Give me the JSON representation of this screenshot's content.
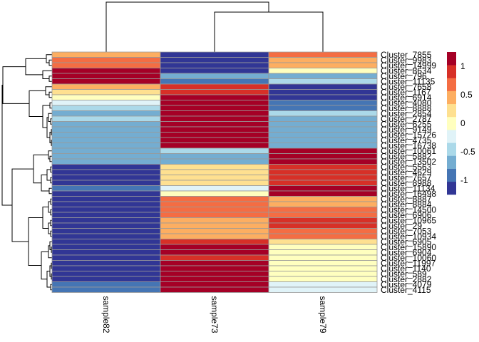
{
  "chart_data": {
    "type": "heatmap",
    "title": "",
    "xlabel": "",
    "ylabel": "",
    "columns": [
      "sample82",
      "sample73",
      "sample79"
    ],
    "rows": [
      "Cluster_7855",
      "Cluster_9983",
      "Cluster_14999",
      "Cluster_8634",
      "Cluster_796",
      "Cluster_11135",
      "Cluster_7658",
      "Cluster_1167",
      "Cluster_6914",
      "Cluster_4080",
      "Cluster_8888",
      "Cluster_2854",
      "Cluster_2787",
      "Cluster_6255",
      "Cluster_9149",
      "Cluster_15726",
      "Cluster_4735",
      "Cluster_16738",
      "Cluster_10061",
      "Cluster_5882",
      "Cluster_13502",
      "Cluster_5563",
      "Cluster_4629",
      "Cluster_7657",
      "Cluster_8988",
      "Cluster_11134",
      "Cluster_16498",
      "Cluster_8887",
      "Cluster_8884",
      "Cluster_14500",
      "Cluster_6906",
      "Cluster_10965",
      "Cluster_29",
      "Cluster_7053",
      "Cluster_10934",
      "Cluster_6905",
      "Cluster_15890",
      "Cluster_6904",
      "Cluster_10060",
      "Cluster_11997",
      "Cluster_1140",
      "Cluster_589",
      "Cluster_2882",
      "Cluster_4079",
      "Cluster_4115"
    ],
    "values": [
      [
        0.5,
        -1.15,
        0.75
      ],
      [
        0.75,
        -1.15,
        0.5
      ],
      [
        0.75,
        -1.15,
        0.5
      ],
      [
        1.15,
        -1.15,
        0.0
      ],
      [
        1.15,
        -0.6,
        -0.6
      ],
      [
        1.15,
        -0.85,
        -0.4
      ],
      [
        0.5,
        0.95,
        -1.15
      ],
      [
        0.3,
        0.95,
        -1.15
      ],
      [
        0.0,
        1.15,
        -1.15
      ],
      [
        -0.15,
        1.15,
        -0.85
      ],
      [
        -0.4,
        1.15,
        -0.85
      ],
      [
        -0.6,
        1.15,
        -0.4
      ],
      [
        -0.4,
        1.15,
        -0.6
      ],
      [
        -0.6,
        1.15,
        -0.6
      ],
      [
        -0.6,
        1.15,
        -0.6
      ],
      [
        -0.6,
        1.15,
        -0.6
      ],
      [
        -0.6,
        1.15,
        -0.6
      ],
      [
        -0.6,
        1.15,
        -0.6
      ],
      [
        -0.6,
        -0.4,
        1.15
      ],
      [
        -0.6,
        -0.6,
        1.15
      ],
      [
        -0.6,
        -0.6,
        1.15
      ],
      [
        -1.15,
        0.3,
        0.95
      ],
      [
        -1.15,
        0.3,
        0.95
      ],
      [
        -1.15,
        0.3,
        0.95
      ],
      [
        -1.15,
        0.3,
        0.95
      ],
      [
        -0.85,
        -0.15,
        1.15
      ],
      [
        -1.15,
        0.0,
        1.15
      ],
      [
        -1.15,
        0.75,
        0.5
      ],
      [
        -1.15,
        0.75,
        0.5
      ],
      [
        -1.15,
        0.75,
        0.75
      ],
      [
        -1.15,
        0.75,
        0.75
      ],
      [
        -1.15,
        0.5,
        0.95
      ],
      [
        -1.15,
        0.5,
        0.95
      ],
      [
        -1.15,
        0.5,
        0.75
      ],
      [
        -1.15,
        0.5,
        0.75
      ],
      [
        -1.15,
        0.95,
        0.3
      ],
      [
        -1.15,
        1.15,
        0.0
      ],
      [
        -1.15,
        1.15,
        0.0
      ],
      [
        -1.15,
        0.95,
        0.0
      ],
      [
        -1.15,
        1.15,
        0.0
      ],
      [
        -1.15,
        1.15,
        0.0
      ],
      [
        -1.15,
        1.15,
        0.0
      ],
      [
        -1.15,
        1.15,
        0.0
      ],
      [
        -0.85,
        1.15,
        -0.15
      ],
      [
        -0.85,
        1.15,
        -0.15
      ]
    ],
    "color_scale": {
      "min": -1.25,
      "max": 1.25,
      "colors": [
        "#313695",
        "#4575B4",
        "#74ADD1",
        "#ABD9E9",
        "#E0F3F8",
        "#FFFFBF",
        "#FEE090",
        "#FDAE61",
        "#F46D43",
        "#D73027",
        "#A50026"
      ]
    },
    "legend": {
      "position": "right",
      "ticks": [
        1,
        0.5,
        0,
        -0.5,
        -1
      ],
      "tick_labels": [
        "1",
        "0.5",
        "0",
        "-0.5",
        "-1"
      ]
    },
    "col_dendrogram_order": [
      "sample82",
      "sample73",
      "sample79"
    ],
    "grid": true,
    "cell_border_color": "#999999"
  }
}
